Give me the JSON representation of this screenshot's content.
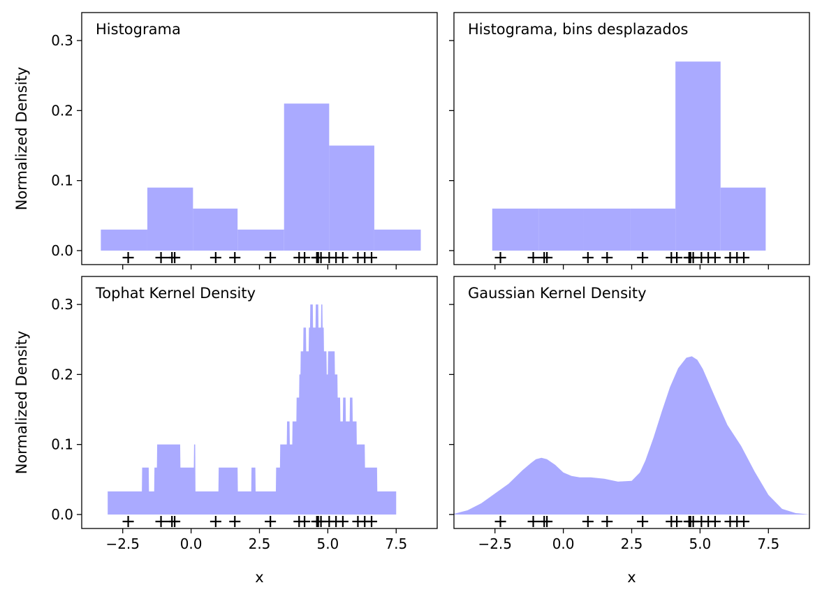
{
  "colors": {
    "fill": "#aaaaff",
    "marks": "#000000",
    "frame": "#000000"
  },
  "chart_data": [
    {
      "type": "bar",
      "title": "Histograma",
      "ylabel": "Normalized Density",
      "xlabel": "",
      "xlim": [
        -4.0,
        9.0
      ],
      "ylim": [
        -0.02,
        0.34
      ],
      "xticks": [
        -2.5,
        0.0,
        2.5,
        5.0,
        7.5
      ],
      "yticks": [
        0.0,
        0.1,
        0.2,
        0.3
      ],
      "show_x_tick_labels": false,
      "show_y_tick_labels": true,
      "bin_edges": [
        -3.3,
        -1.6,
        0.07,
        1.7,
        3.4,
        5.05,
        6.7,
        8.4
      ],
      "values": [
        0.03,
        0.09,
        0.06,
        0.03,
        0.21,
        0.15,
        0.03
      ],
      "samples": [
        -2.3,
        -1.1,
        -0.7,
        -0.6,
        0.9,
        1.6,
        2.9,
        3.95,
        4.15,
        4.6,
        4.65,
        4.75,
        5.05,
        5.3,
        5.55,
        6.1,
        6.35,
        6.6
      ]
    },
    {
      "type": "bar",
      "title": "Histograma, bins desplazados",
      "ylabel": "",
      "xlabel": "",
      "xlim": [
        -4.0,
        9.0
      ],
      "ylim": [
        -0.02,
        0.34
      ],
      "xticks": [
        -2.5,
        0.0,
        2.5,
        5.0,
        7.5
      ],
      "yticks": [
        0.0,
        0.1,
        0.2,
        0.3
      ],
      "show_x_tick_labels": false,
      "show_y_tick_labels": false,
      "bin_edges": [
        -2.6,
        -0.9,
        0.75,
        2.45,
        4.1,
        5.75,
        7.4
      ],
      "values": [
        0.06,
        0.06,
        0.06,
        0.06,
        0.27,
        0.09
      ],
      "samples": [
        -2.3,
        -1.1,
        -0.7,
        -0.6,
        0.9,
        1.6,
        2.9,
        3.95,
        4.15,
        4.6,
        4.65,
        4.75,
        5.05,
        5.3,
        5.55,
        6.1,
        6.35,
        6.6
      ]
    },
    {
      "type": "area",
      "title": "Tophat Kernel Density",
      "ylabel": "Normalized Density",
      "xlabel": "x",
      "xlim": [
        -4.0,
        9.0
      ],
      "ylim": [
        -0.02,
        0.34
      ],
      "xticks": [
        -2.5,
        0.0,
        2.5,
        5.0,
        7.5
      ],
      "yticks": [
        0.0,
        0.1,
        0.2,
        0.3
      ],
      "show_x_tick_labels": true,
      "show_y_tick_labels": true,
      "x": [
        -3.05,
        -1.8,
        -1.79,
        -1.55,
        -1.54,
        -1.35,
        -1.34,
        -1.25,
        -1.24,
        -0.95,
        -0.94,
        -0.6,
        -0.4,
        -0.39,
        0.1,
        0.11,
        0.15,
        0.16,
        0.4,
        0.41,
        1.0,
        1.01,
        1.7,
        1.71,
        2.2,
        2.21,
        2.35,
        2.36,
        3.1,
        3.11,
        3.25,
        3.26,
        3.5,
        3.51,
        3.6,
        3.61,
        3.7,
        3.71,
        3.85,
        3.86,
        3.95,
        3.96,
        4.0,
        4.01,
        4.1,
        4.11,
        4.2,
        4.21,
        4.3,
        4.31,
        4.35,
        4.36,
        4.45,
        4.46,
        4.55,
        4.56,
        4.65,
        4.66,
        4.75,
        4.76,
        4.8,
        4.81,
        4.85,
        4.86,
        4.95,
        4.96,
        5.0,
        5.01,
        5.25,
        5.26,
        5.35,
        5.36,
        5.45,
        5.46,
        5.55,
        5.56,
        5.65,
        5.66,
        5.8,
        5.81,
        5.9,
        5.91,
        6.05,
        6.06,
        6.15,
        6.16,
        6.35,
        6.36,
        6.8,
        6.81,
        7.05,
        7.06,
        7.3,
        7.31,
        7.5
      ],
      "y": [
        0.033,
        0.033,
        0.067,
        0.067,
        0.033,
        0.033,
        0.067,
        0.067,
        0.1,
        0.1,
        0.1,
        0.1,
        0.1,
        0.067,
        0.067,
        0.1,
        0.1,
        0.033,
        0.033,
        0.033,
        0.033,
        0.067,
        0.067,
        0.033,
        0.033,
        0.067,
        0.067,
        0.033,
        0.033,
        0.067,
        0.067,
        0.1,
        0.1,
        0.133,
        0.133,
        0.1,
        0.1,
        0.133,
        0.133,
        0.167,
        0.167,
        0.2,
        0.2,
        0.233,
        0.233,
        0.267,
        0.267,
        0.233,
        0.233,
        0.267,
        0.267,
        0.3,
        0.3,
        0.267,
        0.267,
        0.3,
        0.3,
        0.267,
        0.267,
        0.3,
        0.3,
        0.267,
        0.267,
        0.233,
        0.233,
        0.2,
        0.2,
        0.233,
        0.233,
        0.2,
        0.2,
        0.167,
        0.167,
        0.133,
        0.133,
        0.167,
        0.167,
        0.133,
        0.133,
        0.167,
        0.167,
        0.133,
        0.133,
        0.1,
        0.1,
        0.1,
        0.1,
        0.067,
        0.067,
        0.033,
        0.033,
        0.033,
        0.033,
        0.033,
        0.033
      ],
      "samples": [
        -2.3,
        -1.1,
        -0.7,
        -0.6,
        0.9,
        1.6,
        2.9,
        3.95,
        4.15,
        4.6,
        4.65,
        4.75,
        5.05,
        5.3,
        5.55,
        6.1,
        6.35,
        6.6
      ]
    },
    {
      "type": "area",
      "title": "Gaussian Kernel Density",
      "ylabel": "",
      "xlabel": "x",
      "xlim": [
        -4.0,
        9.0
      ],
      "ylim": [
        -0.02,
        0.34
      ],
      "xticks": [
        -2.5,
        0.0,
        2.5,
        5.0,
        7.5
      ],
      "yticks": [
        0.0,
        0.1,
        0.2,
        0.3
      ],
      "show_x_tick_labels": true,
      "show_y_tick_labels": false,
      "x": [
        -4.0,
        -3.5,
        -3.0,
        -2.5,
        -2.0,
        -1.5,
        -1.2,
        -1.0,
        -0.8,
        -0.6,
        -0.3,
        0.0,
        0.3,
        0.6,
        1.0,
        1.5,
        2.0,
        2.5,
        2.8,
        3.0,
        3.3,
        3.6,
        3.9,
        4.2,
        4.5,
        4.7,
        4.9,
        5.1,
        5.3,
        5.6,
        6.0,
        6.5,
        7.0,
        7.5,
        8.0,
        8.5,
        9.0
      ],
      "y": [
        0.001,
        0.006,
        0.016,
        0.03,
        0.044,
        0.063,
        0.073,
        0.079,
        0.081,
        0.079,
        0.071,
        0.06,
        0.055,
        0.053,
        0.053,
        0.051,
        0.047,
        0.048,
        0.06,
        0.077,
        0.11,
        0.147,
        0.182,
        0.209,
        0.224,
        0.226,
        0.221,
        0.208,
        0.19,
        0.163,
        0.128,
        0.098,
        0.061,
        0.028,
        0.008,
        0.002,
        0.0
      ],
      "samples": [
        -2.3,
        -1.1,
        -0.7,
        -0.6,
        0.9,
        1.6,
        2.9,
        3.95,
        4.15,
        4.6,
        4.65,
        4.75,
        5.05,
        5.3,
        5.55,
        6.1,
        6.35,
        6.6
      ]
    }
  ]
}
